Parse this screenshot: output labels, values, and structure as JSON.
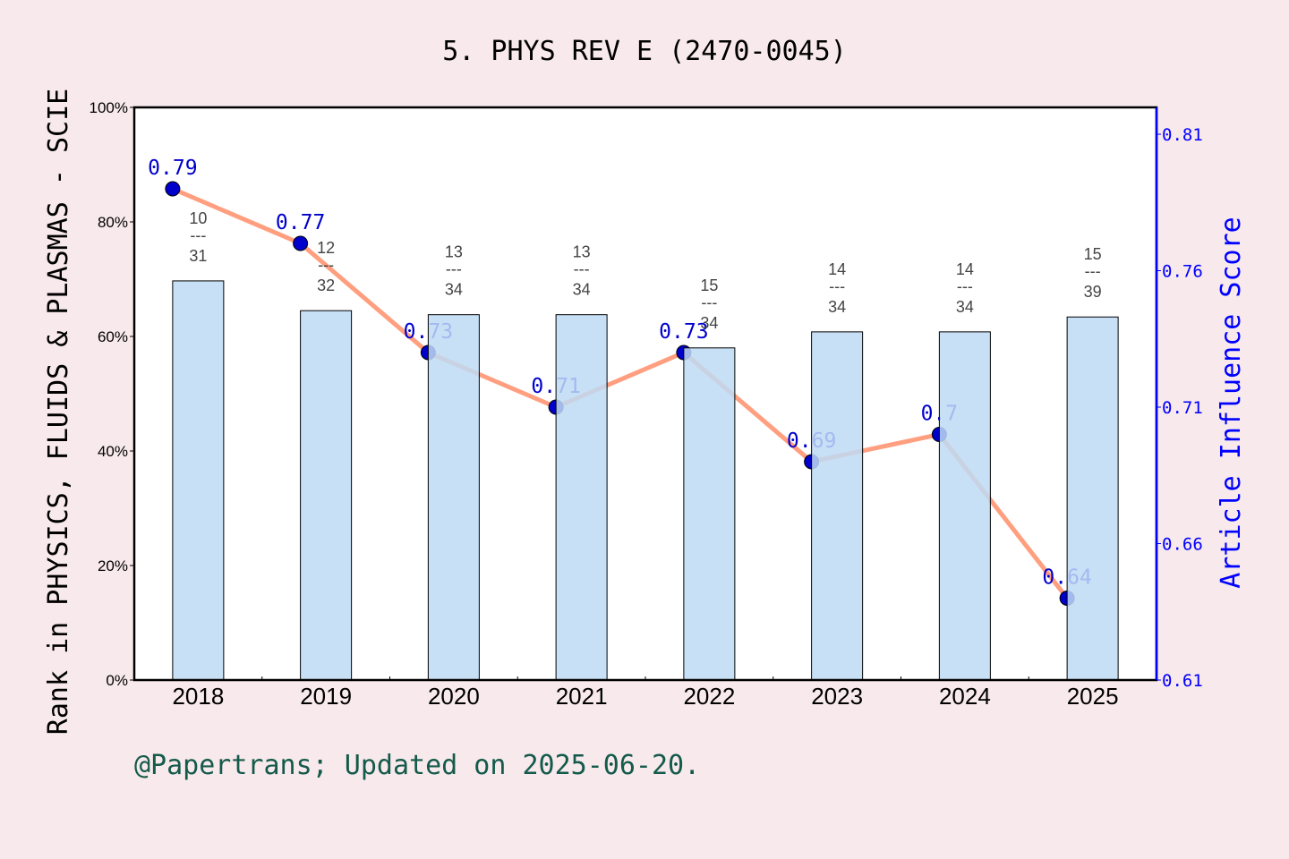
{
  "chart_data": {
    "type": "bar+line",
    "title": "5. PHYS REV E (2470-0045)",
    "ylabel": "Rank in PHYSICS, FLUIDS & PLASMAS - SCIE",
    "y2label": "Article Influence Score",
    "categories": [
      "2018",
      "2019",
      "2020",
      "2021",
      "2022",
      "2023",
      "2024",
      "2025"
    ],
    "bars": {
      "values_percent": [
        69.7,
        64.5,
        63.8,
        63.8,
        58.0,
        60.8,
        60.8,
        63.4
      ],
      "rank": [
        "10",
        "12",
        "13",
        "13",
        "15",
        "14",
        "14",
        "15"
      ],
      "total": [
        "31",
        "32",
        "34",
        "34",
        "34",
        "34",
        "34",
        "39"
      ],
      "fraction_separator": "---",
      "color": "#c5e0f7"
    },
    "line": {
      "values": [
        0.79,
        0.77,
        0.73,
        0.71,
        0.73,
        0.69,
        0.7,
        0.64
      ],
      "labels": [
        "0.79",
        "0.77",
        "0.73",
        "0.71",
        "0.73",
        "0.69",
        "0.7",
        "0.64"
      ],
      "color": "#ff9f7f",
      "marker_color": "#0000cc"
    },
    "ylim": [
      0,
      100
    ],
    "yticks": [
      "0%",
      "20%",
      "40%",
      "60%",
      "80%",
      "100%"
    ],
    "y2lim": [
      0.61,
      0.81
    ],
    "y2ticks": [
      "0.61",
      "0.66",
      "0.71",
      "0.76",
      "0.81"
    ],
    "axis2_color": "#0000ff",
    "grid": false
  },
  "footer": "@Papertrans; Updated on 2025-06-20."
}
